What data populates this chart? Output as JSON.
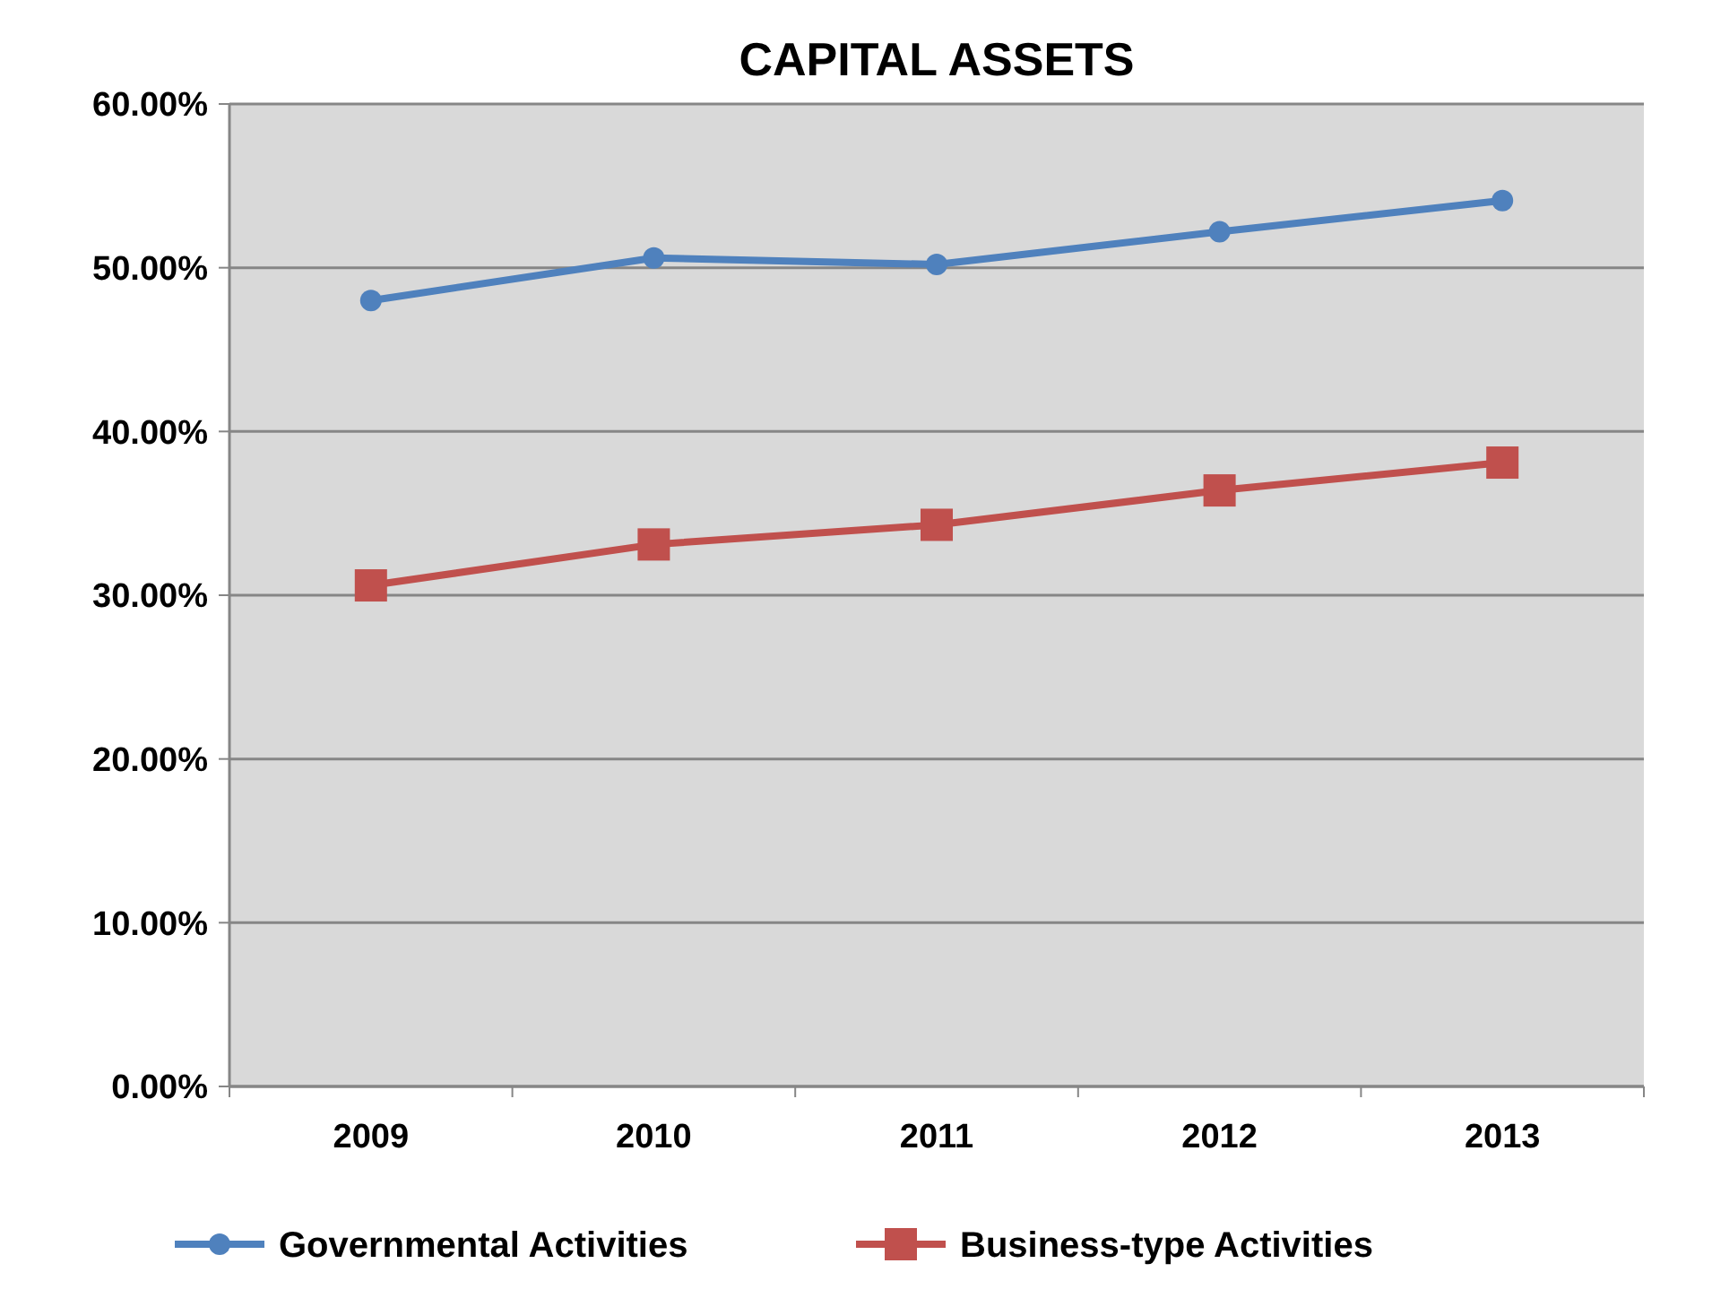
{
  "chart_data": {
    "type": "line",
    "title": "CAPITAL ASSETS",
    "categories": [
      "2009",
      "2010",
      "2011",
      "2012",
      "2013"
    ],
    "series": [
      {
        "name": "Governmental Activities",
        "color": "#4f81bd",
        "marker": "circle",
        "values": [
          48.0,
          50.6,
          50.2,
          52.2,
          54.1
        ]
      },
      {
        "name": "Business-type Activities",
        "color": "#c0504d",
        "marker": "square",
        "values": [
          30.6,
          33.1,
          34.3,
          36.4,
          38.1
        ]
      }
    ],
    "ylim": [
      0,
      60
    ],
    "yticks": [
      {
        "value": 0,
        "label": "0.00%"
      },
      {
        "value": 10,
        "label": "10.00%"
      },
      {
        "value": 20,
        "label": "20.00%"
      },
      {
        "value": 30,
        "label": "30.00%"
      },
      {
        "value": 40,
        "label": "40.00%"
      },
      {
        "value": 50,
        "label": "50.00%"
      },
      {
        "value": 60,
        "label": "60.00%"
      }
    ],
    "grid": "y",
    "legend": "bottom"
  }
}
